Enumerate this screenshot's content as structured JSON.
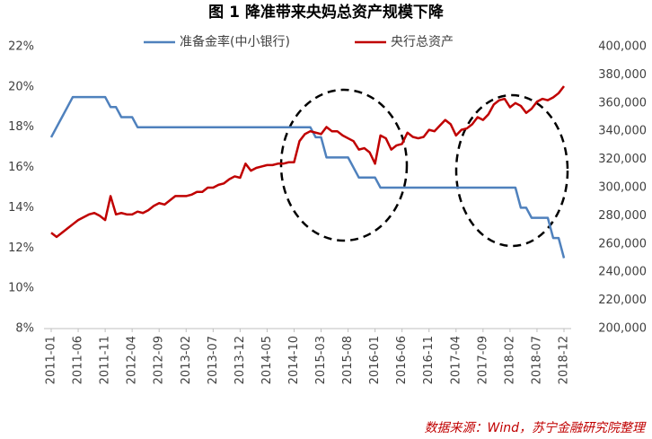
{
  "chart_data": {
    "type": "line",
    "title": "图 1  降准带来央妈总资产规模下降",
    "source": "数据来源：Wind，苏宁金融研究院整理",
    "categories": [
      "2011-01",
      null,
      null,
      null,
      null,
      "2011-06",
      null,
      null,
      null,
      null,
      "2011-11",
      null,
      null,
      null,
      null,
      "2012-04",
      null,
      null,
      null,
      null,
      "2012-09",
      null,
      null,
      null,
      null,
      "2013-02",
      null,
      null,
      null,
      null,
      "2013-07",
      null,
      null,
      null,
      null,
      "2013-12",
      null,
      null,
      null,
      null,
      "2014-05",
      null,
      null,
      null,
      null,
      "2014-10",
      null,
      null,
      null,
      null,
      "2015-03",
      null,
      null,
      null,
      null,
      "2015-08",
      null,
      null,
      null,
      null,
      "2016-01",
      null,
      null,
      null,
      null,
      "2016-06",
      null,
      null,
      null,
      null,
      "2016-11",
      null,
      null,
      null,
      null,
      "2017-04",
      null,
      null,
      null,
      null,
      "2017-09",
      null,
      null,
      null,
      null,
      "2018-02",
      null,
      null,
      null,
      null,
      "2018-07",
      null,
      null,
      null,
      null,
      "2018-12"
    ],
    "series": [
      {
        "name": "准备金率(中小银行)",
        "color": "#4f81bd",
        "axis": "y",
        "values": [
          17.5,
          18,
          18.5,
          19,
          19.5,
          19.5,
          19.5,
          19.5,
          19.5,
          19.5,
          19.5,
          19,
          19,
          18.5,
          18.5,
          18.5,
          18,
          18,
          18,
          18,
          18,
          18,
          18,
          18,
          18,
          18,
          18,
          18,
          18,
          18,
          18,
          18,
          18,
          18,
          18,
          18,
          18,
          18,
          18,
          18,
          18,
          18,
          18,
          18,
          18,
          18,
          18,
          18,
          18,
          17.5,
          17.5,
          16.5,
          16.5,
          16.5,
          16.5,
          16.5,
          16,
          15.5,
          15.5,
          15.5,
          15.5,
          15,
          15,
          15,
          15,
          15,
          15,
          15,
          15,
          15,
          15,
          15,
          15,
          15,
          15,
          15,
          15,
          15,
          15,
          15,
          15,
          15,
          15,
          15,
          15,
          15,
          15,
          14,
          14,
          13.5,
          13.5,
          13.5,
          13.5,
          12.5,
          12.5,
          11.5
        ]
      },
      {
        "name": "央行总资产",
        "color": "#c00000",
        "axis": "y2",
        "values": [
          268000,
          265000,
          268000,
          271000,
          274000,
          277000,
          279000,
          281000,
          282000,
          280000,
          277000,
          294000,
          281000,
          282000,
          281000,
          281000,
          283000,
          282000,
          284000,
          287000,
          289000,
          288000,
          291000,
          294000,
          294000,
          294000,
          295000,
          297000,
          297000,
          300000,
          300000,
          302000,
          303000,
          306000,
          308000,
          307000,
          317000,
          312000,
          314000,
          315000,
          316000,
          316000,
          317000,
          317000,
          318000,
          318000,
          333000,
          338000,
          340000,
          339000,
          338000,
          343000,
          340000,
          340000,
          337000,
          335000,
          333000,
          327000,
          328000,
          325000,
          317000,
          337000,
          335000,
          327000,
          330000,
          331000,
          339000,
          336000,
          335000,
          336000,
          341000,
          340000,
          344000,
          348000,
          345000,
          337000,
          341000,
          342000,
          345000,
          350000,
          348000,
          352000,
          359000,
          362000,
          363000,
          357000,
          360000,
          358000,
          353000,
          356000,
          361000,
          363000,
          362000,
          364000,
          367000,
          372000
        ]
      }
    ],
    "ylim": [
      8,
      22
    ],
    "yticks": [
      {
        "value": 8,
        "label": "8%"
      },
      {
        "value": 10,
        "label": "10%"
      },
      {
        "value": 12,
        "label": "12%"
      },
      {
        "value": 14,
        "label": "14%"
      },
      {
        "value": 16,
        "label": "16%"
      },
      {
        "value": 18,
        "label": "18%"
      },
      {
        "value": 20,
        "label": "20%"
      },
      {
        "value": 22,
        "label": "22%"
      }
    ],
    "y2lim": [
      200000,
      400000
    ],
    "y2ticks": [
      {
        "value": 200000,
        "label": "200,000"
      },
      {
        "value": 220000,
        "label": "220,000"
      },
      {
        "value": 240000,
        "label": "240,000"
      },
      {
        "value": 260000,
        "label": "260,000"
      },
      {
        "value": 280000,
        "label": "280,000"
      },
      {
        "value": 300000,
        "label": "300,000"
      },
      {
        "value": 320000,
        "label": "320,000"
      },
      {
        "value": 340000,
        "label": "340,000"
      },
      {
        "value": 360000,
        "label": "360,000"
      },
      {
        "value": 380000,
        "label": "380,000"
      },
      {
        "value": 400000,
        "label": "400,000"
      }
    ],
    "grid": false
  }
}
